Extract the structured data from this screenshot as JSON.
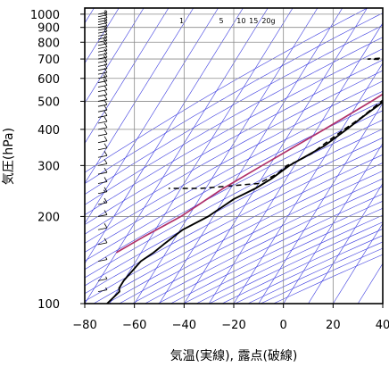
{
  "chart_data": {
    "type": "line",
    "xlabel": "気温(実線), 露点(破線)",
    "ylabel": "気圧(hPa)",
    "xlim": [
      -80,
      40
    ],
    "ylim": [
      1050,
      100
    ],
    "y_scale": "log",
    "x_ticks": [
      -80,
      -60,
      -40,
      -20,
      0,
      20,
      40
    ],
    "x_tick_labels": [
      "−80",
      "−60",
      "−40",
      "−20",
      "0",
      "20",
      "40"
    ],
    "y_ticks": [
      100,
      200,
      300,
      400,
      500,
      600,
      700,
      800,
      900,
      1000
    ],
    "y_tick_labels": [
      "100",
      "200",
      "300",
      "400",
      "500",
      "600",
      "700",
      "800",
      "900",
      "1000"
    ],
    "grid": true,
    "isotherm_temps": [
      -200,
      -190,
      -180,
      -170,
      -160,
      -150,
      -140,
      -130,
      -120,
      -110,
      -100,
      -90,
      -80,
      -70,
      -60,
      -50,
      -40,
      -30,
      -20,
      -10,
      0,
      10,
      20,
      30,
      40
    ],
    "mixing_ratio_labels": [
      "1",
      "5",
      "10",
      "15",
      "20g"
    ],
    "mixing_ratio_label_x": [
      -41,
      -25,
      -17,
      -12,
      -6
    ],
    "colors": {
      "temperature": "#000000",
      "dewpoint": "#000000",
      "parcel": "#b0306a",
      "guide_lines": "#3a3adf",
      "grid": "#8a8a8a"
    },
    "series": [
      {
        "style": "solid",
        "points": [
          [
            1000,
            25
          ],
          [
            970,
            19
          ],
          [
            940,
            14
          ],
          [
            910,
            12.5
          ],
          [
            880,
            13
          ],
          [
            850,
            12
          ],
          [
            800,
            9
          ],
          [
            750,
            6
          ],
          [
            700,
            3.5
          ],
          [
            650,
            0.5
          ],
          [
            600,
            -3
          ],
          [
            560,
            -6
          ],
          [
            500,
            -10
          ],
          [
            450,
            -14
          ],
          [
            400,
            -18
          ],
          [
            350,
            -23
          ],
          [
            300,
            -32
          ],
          [
            270,
            -36
          ],
          [
            250,
            -40
          ],
          [
            230,
            -46
          ],
          [
            200,
            -52
          ],
          [
            180,
            -59
          ],
          [
            160,
            -63
          ],
          [
            150,
            -65
          ],
          [
            140,
            -68
          ],
          [
            120,
            -70
          ],
          [
            113,
            -70
          ],
          [
            110,
            -69
          ],
          [
            100,
            -71
          ]
        ]
      },
      {
        "style": "dashed",
        "points": [
          [
            1000,
            24
          ],
          [
            970,
            17
          ],
          [
            940,
            12
          ],
          [
            910,
            11.5
          ],
          [
            880,
            10.5
          ],
          [
            850,
            9
          ],
          [
            800,
            7
          ],
          [
            790,
            3
          ],
          [
            780,
            -10
          ],
          [
            775,
            -14
          ],
          [
            770,
            -10
          ],
          [
            760,
            -7
          ],
          [
            750,
            -8
          ],
          [
            740,
            -12
          ],
          [
            730,
            -17
          ],
          [
            720,
            -18
          ],
          [
            710,
            -17
          ],
          [
            700,
            -27
          ],
          [
            695,
            -17
          ],
          [
            690,
            -15
          ],
          [
            685,
            -13
          ],
          [
            680,
            -8
          ],
          [
            660,
            -2
          ],
          [
            640,
            -5
          ],
          [
            620,
            -7
          ],
          [
            600,
            -6
          ],
          [
            560,
            -8
          ],
          [
            530,
            -9
          ],
          [
            500,
            -11
          ],
          [
            470,
            -13
          ],
          [
            440,
            -15
          ],
          [
            400,
            -19
          ],
          [
            360,
            -23
          ],
          [
            330,
            -26
          ],
          [
            310,
            -30
          ],
          [
            300,
            -33
          ],
          [
            280,
            -35
          ],
          [
            260,
            -40
          ],
          [
            250,
            -62
          ],
          [
            250,
            -75
          ]
        ]
      },
      {
        "style": "parcel",
        "points": [
          [
            1000,
            25
          ],
          [
            850,
            12
          ],
          [
            700,
            2
          ],
          [
            600,
            -6
          ],
          [
            500,
            -15
          ],
          [
            400,
            -27
          ],
          [
            300,
            -43
          ],
          [
            250,
            -53
          ],
          [
            200,
            -63
          ],
          [
            170,
            -73
          ],
          [
            150,
            -80
          ]
        ]
      }
    ],
    "wind_profile": [
      [
        1000,
        5
      ],
      [
        980,
        10
      ],
      [
        960,
        10
      ],
      [
        940,
        5
      ],
      [
        920,
        10
      ],
      [
        900,
        10
      ],
      [
        880,
        5
      ],
      [
        860,
        10
      ],
      [
        840,
        10
      ],
      [
        820,
        5
      ],
      [
        800,
        15
      ],
      [
        780,
        15
      ],
      [
        760,
        10
      ],
      [
        740,
        5
      ],
      [
        720,
        10
      ],
      [
        700,
        15
      ],
      [
        680,
        10
      ],
      [
        660,
        10
      ],
      [
        640,
        10
      ],
      [
        620,
        10
      ],
      [
        600,
        15
      ],
      [
        580,
        15
      ],
      [
        560,
        10
      ],
      [
        540,
        10
      ],
      [
        520,
        10
      ],
      [
        500,
        10
      ],
      [
        480,
        10
      ],
      [
        460,
        10
      ],
      [
        440,
        10
      ],
      [
        420,
        10
      ],
      [
        400,
        10
      ],
      [
        380,
        10
      ],
      [
        360,
        10
      ],
      [
        340,
        10
      ],
      [
        320,
        10
      ],
      [
        300,
        10
      ],
      [
        280,
        10
      ],
      [
        260,
        10
      ],
      [
        240,
        15
      ],
      [
        220,
        15
      ],
      [
        200,
        10
      ],
      [
        180,
        10
      ],
      [
        160,
        10
      ],
      [
        140,
        5
      ],
      [
        120,
        5
      ],
      [
        110,
        5
      ]
    ]
  }
}
